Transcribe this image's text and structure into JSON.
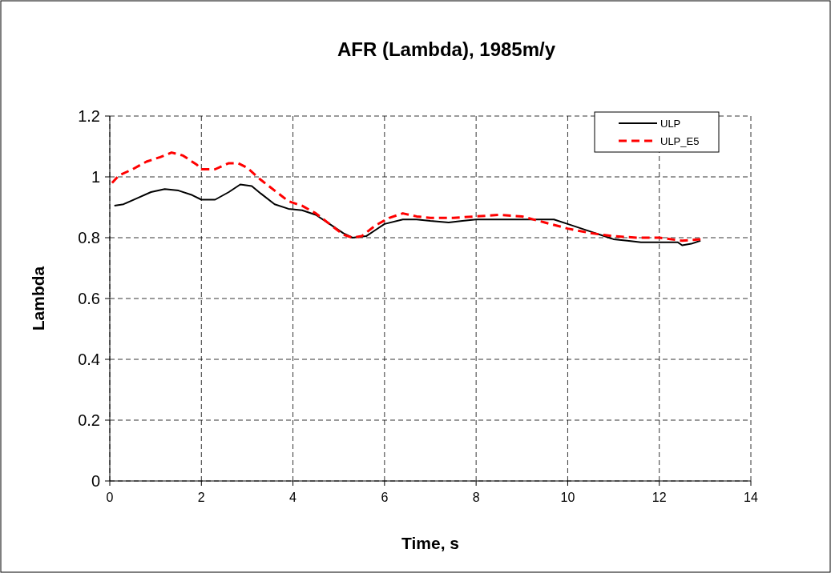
{
  "chart_data": {
    "type": "line",
    "title": "AFR (Lambda), 1985m/y",
    "xlabel": "Time, s",
    "ylabel": "Lambda",
    "xlim": [
      0,
      14
    ],
    "xticks": [
      0,
      2,
      4,
      6,
      8,
      10,
      12,
      14
    ],
    "ylim": [
      0,
      1.2
    ],
    "yticks": [
      0,
      0.2,
      0.4,
      0.6,
      0.8,
      1,
      1.2
    ],
    "grid": true,
    "legend": "top right",
    "series": [
      {
        "name": "ULP",
        "color": "#000000",
        "line_style": "solid",
        "x": [
          0.1,
          0.3,
          0.6,
          0.9,
          1.2,
          1.5,
          1.8,
          2.0,
          2.3,
          2.6,
          2.85,
          3.1,
          3.3,
          3.6,
          3.9,
          4.2,
          4.5,
          4.8,
          5.1,
          5.3,
          5.6,
          5.8,
          6.0,
          6.4,
          6.7,
          7.0,
          7.4,
          7.7,
          8.0,
          9.0,
          9.7,
          10.0,
          10.5,
          11.0,
          11.3,
          11.6,
          12.0,
          12.4,
          12.5,
          12.7,
          12.9
        ],
        "values": [
          0.905,
          0.91,
          0.93,
          0.95,
          0.96,
          0.955,
          0.94,
          0.925,
          0.925,
          0.95,
          0.975,
          0.97,
          0.945,
          0.91,
          0.895,
          0.89,
          0.875,
          0.845,
          0.815,
          0.8,
          0.805,
          0.825,
          0.845,
          0.86,
          0.86,
          0.855,
          0.85,
          0.855,
          0.86,
          0.86,
          0.86,
          0.845,
          0.82,
          0.795,
          0.79,
          0.785,
          0.785,
          0.785,
          0.775,
          0.78,
          0.79
        ]
      },
      {
        "name": "ULP_E5",
        "color": "#ff0000",
        "line_style": "dashed",
        "x": [
          0.05,
          0.2,
          0.5,
          0.8,
          1.1,
          1.35,
          1.6,
          1.9,
          2.0,
          2.3,
          2.6,
          2.8,
          3.0,
          3.3,
          3.6,
          3.9,
          4.2,
          4.5,
          4.8,
          5.1,
          5.3,
          5.5,
          5.8,
          6.1,
          6.4,
          6.7,
          7.0,
          7.5,
          8.0,
          8.5,
          9.0,
          9.5,
          10.0,
          10.5,
          11.0,
          11.5,
          12.0,
          12.5,
          12.9
        ],
        "values": [
          0.98,
          1.005,
          1.025,
          1.05,
          1.065,
          1.08,
          1.07,
          1.04,
          1.025,
          1.025,
          1.045,
          1.045,
          1.03,
          0.99,
          0.955,
          0.92,
          0.905,
          0.88,
          0.845,
          0.81,
          0.8,
          0.805,
          0.84,
          0.865,
          0.88,
          0.87,
          0.865,
          0.865,
          0.87,
          0.875,
          0.87,
          0.85,
          0.83,
          0.815,
          0.805,
          0.8,
          0.8,
          0.79,
          0.795
        ]
      }
    ]
  }
}
